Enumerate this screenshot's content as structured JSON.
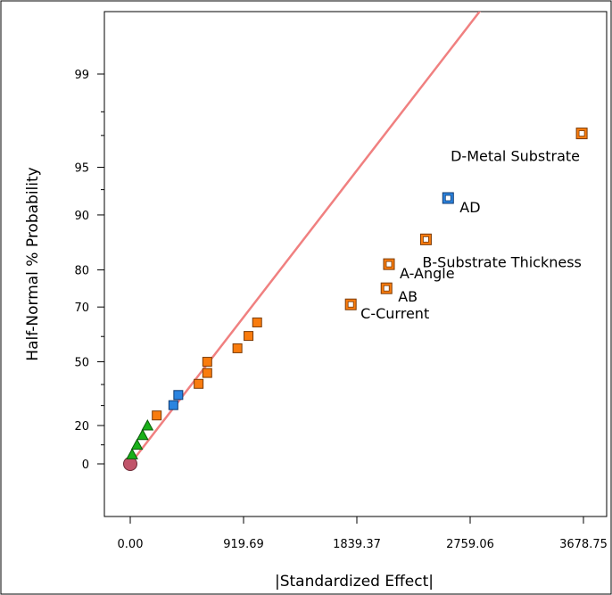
{
  "chart_data": {
    "type": "scatter",
    "title": "",
    "xlabel": "|Standardized Effect|",
    "ylabel": "Half-Normal % Probability",
    "xlim": [
      -110,
      3700
    ],
    "x_ticks": [
      0.0,
      919.69,
      1839.37,
      2759.06,
      3678.75
    ],
    "x_tick_labels": [
      "0.00",
      "919.69",
      "1839.37",
      "2759.06",
      "3678.75"
    ],
    "y_ticks": [
      0,
      20,
      50,
      70,
      80,
      90,
      95,
      99
    ],
    "y_tick_labels": [
      "0",
      "20",
      "50",
      "70",
      "80",
      "90",
      "95",
      "99"
    ],
    "grid": false,
    "colors": {
      "positive": "#f97c0e",
      "negative": "#2b84e0",
      "error": "#19b019",
      "outline": "#7a3a06",
      "line": "#f08080",
      "origin": "#c1546a"
    },
    "reference_line": {
      "x": [
        0,
        3678.75
      ],
      "y": [
        0,
        99.99
      ]
    },
    "origin_marker": {
      "x": 0,
      "y": 0
    },
    "labeled_effects": [
      {
        "label": "D-Metal Substrate",
        "x": 3665,
        "y": 97.1,
        "sign": "positive"
      },
      {
        "label": "AD",
        "x": 2580,
        "y": 92.1,
        "sign": "negative"
      },
      {
        "label": "B-Substrate Thickness",
        "x": 2400,
        "y": 86.2,
        "sign": "positive"
      },
      {
        "label": "A-Angle",
        "x": 2100,
        "y": 81.3,
        "sign": "positive"
      },
      {
        "label": "AB",
        "x": 2080,
        "y": 75.4,
        "sign": "positive"
      },
      {
        "label": "C-Current",
        "x": 1790,
        "y": 70.8,
        "sign": "positive"
      }
    ],
    "other_effects": [
      {
        "x": 1030,
        "y": 65.0,
        "sign": "positive"
      },
      {
        "x": 960,
        "y": 60.2,
        "sign": "positive"
      },
      {
        "x": 870,
        "y": 55.5,
        "sign": "positive"
      },
      {
        "x": 625,
        "y": 50.0,
        "sign": "positive"
      },
      {
        "x": 625,
        "y": 45.2,
        "sign": "positive"
      },
      {
        "x": 555,
        "y": 40.3,
        "sign": "positive"
      },
      {
        "x": 390,
        "y": 35.1,
        "sign": "negative"
      },
      {
        "x": 350,
        "y": 30.2,
        "sign": "negative"
      },
      {
        "x": 215,
        "y": 25.1,
        "sign": "positive"
      }
    ],
    "error_estimates": [
      {
        "x": 140,
        "y": 20.0
      },
      {
        "x": 100,
        "y": 15.1
      },
      {
        "x": 55,
        "y": 10.0
      },
      {
        "x": 15,
        "y": 5.0
      }
    ]
  }
}
